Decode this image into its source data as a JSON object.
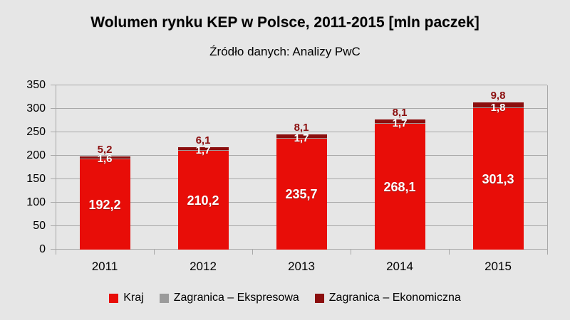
{
  "title": "Wolumen rynku KEP w Polsce, 2011-2015 [mln paczek]",
  "subtitle": "Źródło danych: Analizy PwC",
  "colors": {
    "background": "#E6E6E6",
    "grid": "#A8A8A8",
    "axis": "#A8A8A8",
    "kraj": "#E80D08",
    "ekspresowa": "#9B9B9B",
    "ekonomiczna": "#8B0E0E",
    "label_white": "#FFFFFF",
    "label_dark": "#8B0E0E",
    "text": "#000000"
  },
  "chart_data": {
    "type": "bar",
    "stacked": true,
    "title": "Wolumen rynku KEP w Polsce, 2011-2015 [mln paczek]",
    "subtitle": "Źródło danych: Analizy PwC",
    "xlabel": "",
    "ylabel": "",
    "categories": [
      "2011",
      "2012",
      "2013",
      "2014",
      "2015"
    ],
    "series": [
      {
        "name": "Kraj",
        "color_key": "kraj",
        "values": [
          192.2,
          210.2,
          235.7,
          268.1,
          301.3
        ],
        "labels": [
          "192,2",
          "210,2",
          "235,7",
          "268,1",
          "301,3"
        ]
      },
      {
        "name": "Zagranica – Ekspresowa",
        "color_key": "ekspresowa",
        "values": [
          1.6,
          1.7,
          1.7,
          1.7,
          1.8
        ],
        "labels": [
          "1,6",
          "1,7",
          "1,7",
          "1,7",
          "1,8"
        ]
      },
      {
        "name": "Zagranica – Ekonomiczna",
        "color_key": "ekonomiczna",
        "values": [
          5.2,
          6.1,
          8.1,
          8.1,
          9.8
        ],
        "labels": [
          "5,2",
          "6,1",
          "8,1",
          "8,1",
          "9,8"
        ]
      }
    ],
    "ylim": [
      0,
      350
    ],
    "ytick_interval": 50,
    "yticks": [
      "0",
      "50",
      "100",
      "150",
      "200",
      "250",
      "300",
      "350"
    ],
    "grid": true,
    "legend_position": "bottom"
  },
  "legend": {
    "items": [
      {
        "label": "Kraj",
        "color_key": "kraj"
      },
      {
        "label": "Zagranica – Ekspresowa",
        "color_key": "ekspresowa"
      },
      {
        "label": "Zagranica – Ekonomiczna",
        "color_key": "ekonomiczna"
      }
    ]
  }
}
